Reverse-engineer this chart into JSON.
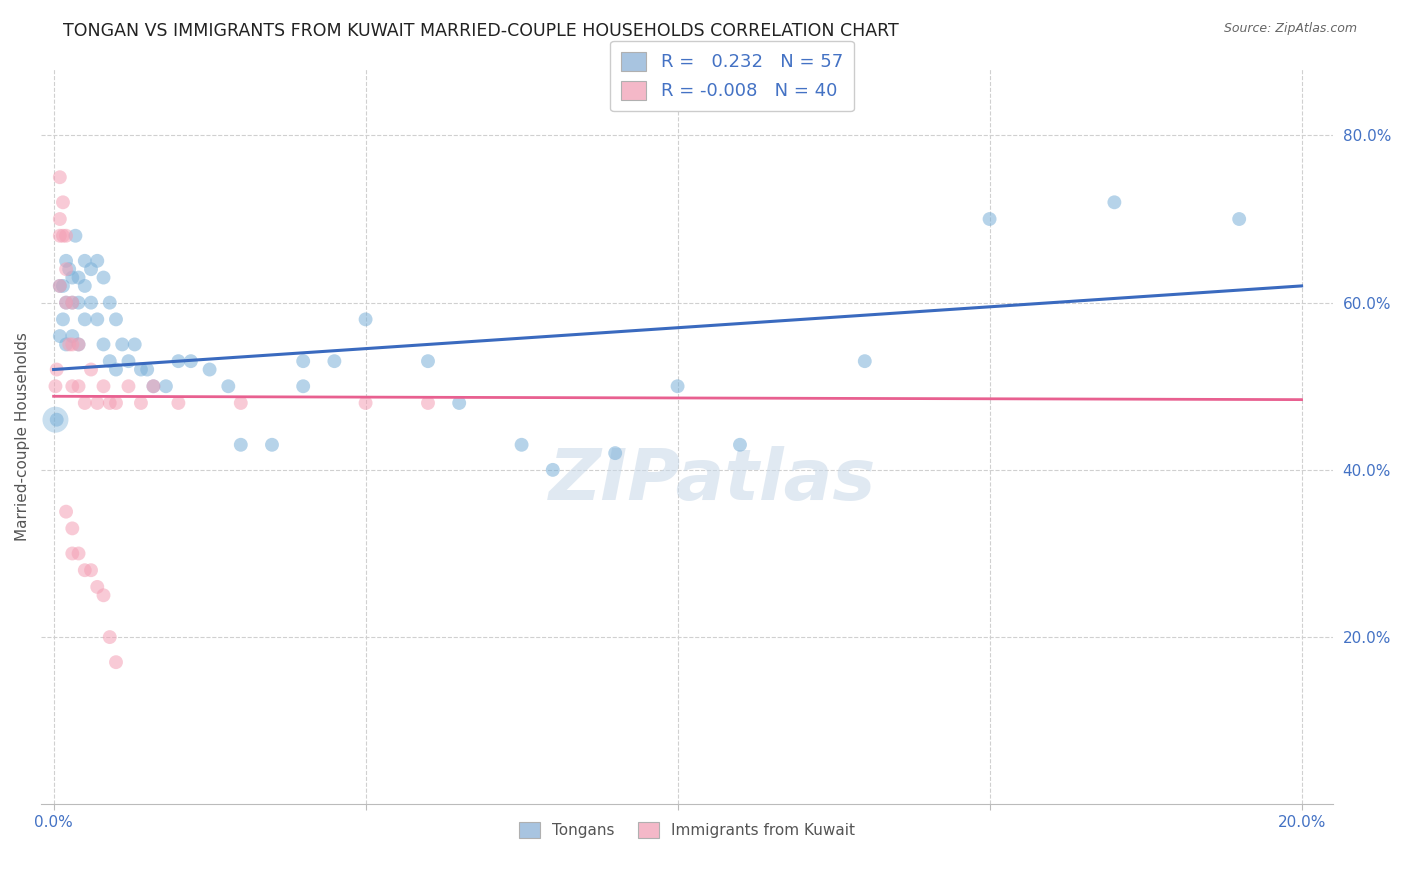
{
  "title": "TONGAN VS IMMIGRANTS FROM KUWAIT MARRIED-COUPLE HOUSEHOLDS CORRELATION CHART",
  "source": "Source: ZipAtlas.com",
  "ylabel": "Married-couple Households",
  "legend_entries": [
    {
      "label": "Tongans",
      "R": "0.232",
      "N": "57",
      "color": "#a8c4e0"
    },
    {
      "label": "Immigrants from Kuwait",
      "R": "-0.008",
      "N": "40",
      "color": "#f4b8c8"
    }
  ],
  "blue_scatter_x": [
    0.0005,
    0.001,
    0.001,
    0.0015,
    0.0015,
    0.002,
    0.002,
    0.002,
    0.0025,
    0.003,
    0.003,
    0.003,
    0.0035,
    0.004,
    0.004,
    0.004,
    0.005,
    0.005,
    0.005,
    0.006,
    0.006,
    0.007,
    0.007,
    0.008,
    0.008,
    0.009,
    0.009,
    0.01,
    0.01,
    0.011,
    0.012,
    0.013,
    0.014,
    0.015,
    0.016,
    0.018,
    0.02,
    0.022,
    0.025,
    0.028,
    0.03,
    0.035,
    0.04,
    0.04,
    0.045,
    0.05,
    0.06,
    0.065,
    0.075,
    0.08,
    0.09,
    0.1,
    0.11,
    0.13,
    0.15,
    0.17,
    0.19
  ],
  "blue_scatter_y": [
    0.46,
    0.56,
    0.62,
    0.62,
    0.58,
    0.65,
    0.6,
    0.55,
    0.64,
    0.63,
    0.6,
    0.56,
    0.68,
    0.63,
    0.6,
    0.55,
    0.65,
    0.62,
    0.58,
    0.64,
    0.6,
    0.65,
    0.58,
    0.63,
    0.55,
    0.6,
    0.53,
    0.58,
    0.52,
    0.55,
    0.53,
    0.55,
    0.52,
    0.52,
    0.5,
    0.5,
    0.53,
    0.53,
    0.52,
    0.5,
    0.43,
    0.43,
    0.53,
    0.5,
    0.53,
    0.58,
    0.53,
    0.48,
    0.43,
    0.4,
    0.42,
    0.5,
    0.43,
    0.53,
    0.7,
    0.72,
    0.7
  ],
  "blue_large_x": [
    0.0003
  ],
  "blue_large_y": [
    0.46
  ],
  "pink_scatter_x": [
    0.0003,
    0.0005,
    0.001,
    0.001,
    0.001,
    0.001,
    0.0015,
    0.0015,
    0.002,
    0.002,
    0.002,
    0.0025,
    0.003,
    0.003,
    0.003,
    0.004,
    0.004,
    0.005,
    0.006,
    0.007,
    0.008,
    0.009,
    0.01,
    0.012,
    0.014,
    0.016,
    0.02,
    0.03,
    0.05,
    0.06,
    0.002,
    0.003,
    0.003,
    0.004,
    0.005,
    0.006,
    0.007,
    0.008,
    0.009,
    0.01
  ],
  "pink_scatter_y": [
    0.5,
    0.52,
    0.75,
    0.7,
    0.68,
    0.62,
    0.72,
    0.68,
    0.68,
    0.64,
    0.6,
    0.55,
    0.6,
    0.55,
    0.5,
    0.55,
    0.5,
    0.48,
    0.52,
    0.48,
    0.5,
    0.48,
    0.48,
    0.5,
    0.48,
    0.5,
    0.48,
    0.48,
    0.48,
    0.48,
    0.35,
    0.33,
    0.3,
    0.3,
    0.28,
    0.28,
    0.26,
    0.25,
    0.2,
    0.17
  ],
  "blue_line_x": [
    0.0,
    0.2
  ],
  "blue_line_y": [
    0.52,
    0.62
  ],
  "pink_line_x": [
    0.0,
    0.2
  ],
  "pink_line_y": [
    0.488,
    0.484
  ],
  "xlim": [
    -0.002,
    0.205
  ],
  "ylim": [
    0.0,
    0.88
  ],
  "background_color": "#ffffff",
  "scatter_alpha": 0.55,
  "scatter_size": 100,
  "scatter_size_large": 350,
  "blue_color": "#7ab0d8",
  "pink_color": "#f4a0b5",
  "blue_line_color": "#3a6abf",
  "pink_line_color": "#e86090",
  "grid_color": "#d0d0d0",
  "title_fontsize": 12.5,
  "axis_label_color": "#4472c4",
  "watermark_text": "ZIPatlas",
  "watermark_color": "#c8d8e8"
}
